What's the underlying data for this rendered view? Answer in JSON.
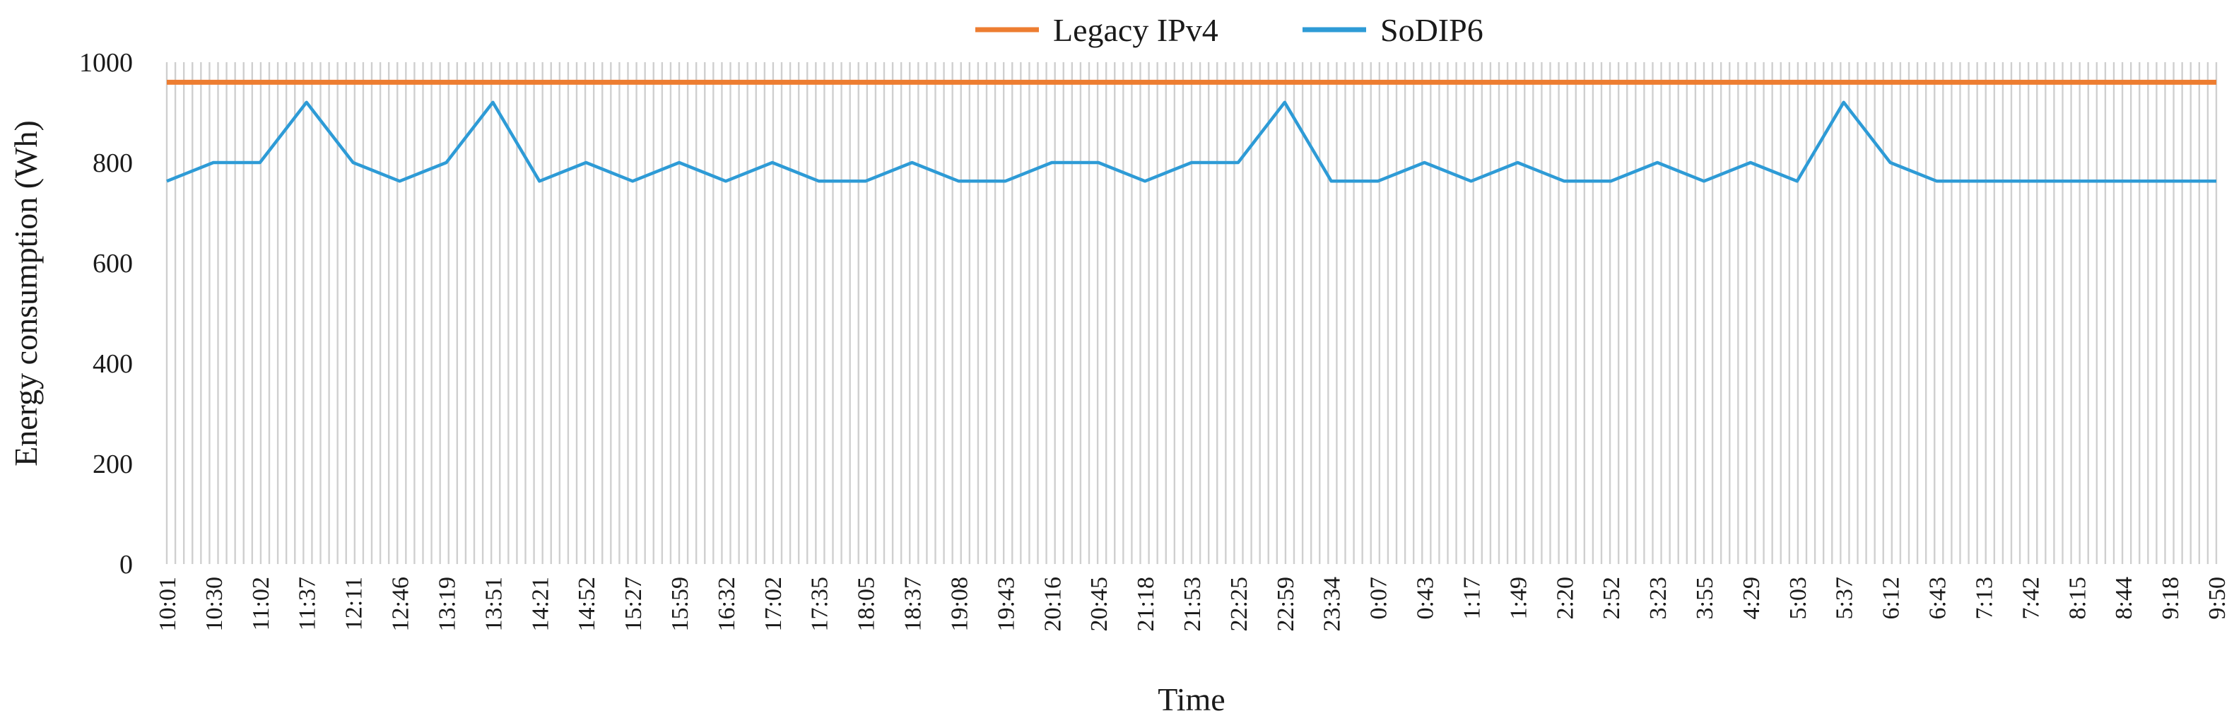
{
  "chart_data": {
    "type": "line",
    "title": "",
    "xlabel": "Time",
    "ylabel": "Energy consumption (Wh)",
    "ylim": [
      0,
      1000
    ],
    "yticks": [
      0,
      200,
      400,
      600,
      800,
      1000
    ],
    "grid": "vertical",
    "legend_position": "top-center",
    "x_tick_labels": [
      "10:01",
      "10:30",
      "11:02",
      "11:37",
      "12:11",
      "12:46",
      "13:19",
      "13:51",
      "14:21",
      "14:52",
      "15:27",
      "15:59",
      "16:32",
      "17:02",
      "17:35",
      "18:05",
      "18:37",
      "19:08",
      "19:43",
      "20:16",
      "20:45",
      "21:18",
      "21:53",
      "22:25",
      "22:59",
      "23:34",
      "0:07",
      "0:43",
      "1:17",
      "1:49",
      "2:20",
      "2:52",
      "3:23",
      "3:55",
      "4:29",
      "5:03",
      "5:37",
      "6:12",
      "6:43",
      "7:13",
      "7:42",
      "8:15",
      "8:44",
      "9:18",
      "9:50"
    ],
    "series": [
      {
        "name": "Legacy IPv4",
        "color": "#ED7D31",
        "values": [
          960,
          960,
          960,
          960,
          960,
          960,
          960,
          960,
          960,
          960,
          960,
          960,
          960,
          960,
          960,
          960,
          960,
          960,
          960,
          960,
          960,
          960,
          960,
          960,
          960,
          960,
          960,
          960,
          960,
          960,
          960,
          960,
          960,
          960,
          960,
          960,
          960,
          960,
          960,
          960,
          960,
          960,
          960,
          960,
          960
        ]
      },
      {
        "name": "SoDIP6",
        "color": "#2E9BD6",
        "values": [
          763,
          800,
          800,
          920,
          800,
          763,
          800,
          920,
          763,
          800,
          763,
          800,
          763,
          800,
          763,
          763,
          800,
          763,
          763,
          800,
          800,
          763,
          800,
          800,
          920,
          763,
          763,
          800,
          763,
          800,
          763,
          763,
          800,
          763,
          800,
          763,
          920,
          800,
          763,
          763,
          763,
          763,
          763,
          763,
          763
        ]
      }
    ]
  }
}
